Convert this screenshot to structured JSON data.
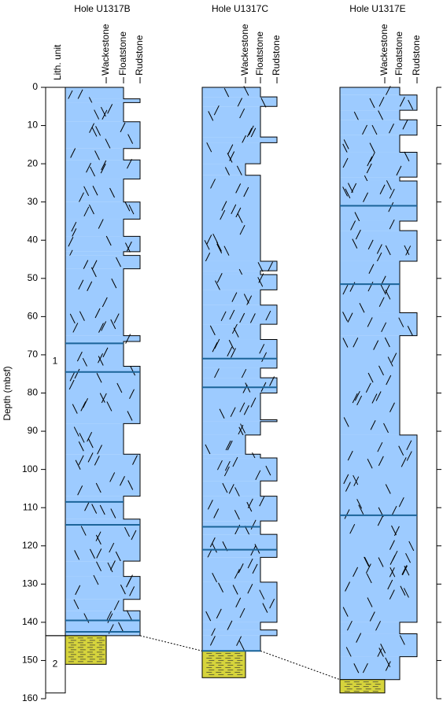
{
  "depth_axis": {
    "label": "Depth (mbsf)",
    "lim": [
      0,
      160
    ],
    "ticks": [
      0,
      10,
      20,
      30,
      40,
      50,
      60,
      70,
      80,
      90,
      100,
      110,
      120,
      130,
      140,
      150,
      160
    ]
  },
  "lith_units": {
    "label": "Lith. unit",
    "units": [
      {
        "label": "1",
        "top": 0,
        "bottom": 143.5
      },
      {
        "label": "2",
        "top": 143.5,
        "bottom": 158.5
      }
    ]
  },
  "holes": [
    {
      "title": "Hole U1317B",
      "columns": [
        "Wackestone",
        "Floatstone",
        "Rudstone"
      ],
      "intervals": [
        [
          0,
          3,
          "Floatstone"
        ],
        [
          3,
          4,
          "Rudstone"
        ],
        [
          4,
          9,
          "Floatstone"
        ],
        [
          9,
          16,
          "Rudstone"
        ],
        [
          16,
          19,
          "Floatstone"
        ],
        [
          19,
          24,
          "Rudstone"
        ],
        [
          24,
          30,
          "Floatstone"
        ],
        [
          30,
          34.5,
          "Rudstone"
        ],
        [
          34.5,
          39,
          "Floatstone"
        ],
        [
          39,
          43,
          "Rudstone"
        ],
        [
          43,
          44,
          "Floatstone"
        ],
        [
          44,
          47.5,
          "Rudstone"
        ],
        [
          47.5,
          65,
          "Floatstone"
        ],
        [
          65,
          66.5,
          "Rudstone"
        ],
        [
          66.5,
          73,
          "Floatstone"
        ],
        [
          73,
          88,
          "Rudstone"
        ],
        [
          88,
          96,
          "Floatstone"
        ],
        [
          96,
          107,
          "Rudstone"
        ],
        [
          107,
          113,
          "Floatstone"
        ],
        [
          113,
          124,
          "Rudstone"
        ],
        [
          124,
          128,
          "Floatstone"
        ],
        [
          128,
          134,
          "Rudstone"
        ],
        [
          134,
          137,
          "Floatstone"
        ],
        [
          137,
          143.5,
          "Rudstone"
        ]
      ],
      "base": [
        143.5,
        151,
        "Wackestone"
      ],
      "horizons": [
        67,
        74.5,
        108.5,
        114.5,
        139.5,
        142.5
      ]
    },
    {
      "title": "Hole U1317C",
      "columns": [
        "Wackestone",
        "Floatstone",
        "Rudstone"
      ],
      "intervals": [
        [
          0,
          2.5,
          "Floatstone"
        ],
        [
          2.5,
          5,
          "Rudstone"
        ],
        [
          5,
          13,
          "Floatstone"
        ],
        [
          13,
          14.5,
          "Rudstone"
        ],
        [
          14.5,
          20,
          "Floatstone"
        ],
        [
          20,
          23,
          "Wackestone"
        ],
        [
          23,
          45.5,
          "Floatstone"
        ],
        [
          45.5,
          48,
          "Rudstone"
        ],
        [
          48,
          49,
          "Floatstone"
        ],
        [
          49,
          53,
          "Rudstone"
        ],
        [
          53,
          57,
          "Floatstone"
        ],
        [
          57,
          62,
          "Rudstone"
        ],
        [
          62,
          66,
          "Floatstone"
        ],
        [
          66,
          73.5,
          "Rudstone"
        ],
        [
          73.5,
          76,
          "Floatstone"
        ],
        [
          76,
          80,
          "Rudstone"
        ],
        [
          80,
          87,
          "Floatstone"
        ],
        [
          87,
          87.5,
          "Rudstone"
        ],
        [
          87.5,
          91,
          "Floatstone"
        ],
        [
          91,
          96,
          "Wackestone"
        ],
        [
          96,
          97,
          "Floatstone"
        ],
        [
          97,
          103,
          "Rudstone"
        ],
        [
          103,
          107,
          "Floatstone"
        ],
        [
          107,
          113.5,
          "Rudstone"
        ],
        [
          113.5,
          117,
          "Floatstone"
        ],
        [
          117,
          123,
          "Rudstone"
        ],
        [
          123,
          129.5,
          "Floatstone"
        ],
        [
          129.5,
          140,
          "Rudstone"
        ],
        [
          140,
          142,
          "Floatstone"
        ],
        [
          142,
          143.5,
          "Rudstone"
        ],
        [
          143.5,
          147.5,
          "Floatstone"
        ]
      ],
      "base": [
        147.5,
        154.5,
        "Wackestone"
      ],
      "horizons": [
        71,
        78.5,
        115,
        121,
        147.5
      ]
    },
    {
      "title": "Hole U1317E",
      "columns": [
        "Wackestone",
        "Floatstone",
        "Rudstone"
      ],
      "intervals": [
        [
          0,
          2,
          "Floatstone"
        ],
        [
          2,
          6,
          "Rudstone"
        ],
        [
          6,
          8.5,
          "Floatstone"
        ],
        [
          8.5,
          12.5,
          "Rudstone"
        ],
        [
          12.5,
          17,
          "Floatstone"
        ],
        [
          17,
          23.5,
          "Rudstone"
        ],
        [
          23.5,
          24.5,
          "Floatstone"
        ],
        [
          24.5,
          35,
          "Rudstone"
        ],
        [
          35,
          37.5,
          "Floatstone"
        ],
        [
          37.5,
          45.5,
          "Rudstone"
        ],
        [
          45.5,
          59,
          "Floatstone"
        ],
        [
          59,
          65,
          "Rudstone"
        ],
        [
          65,
          91,
          "Floatstone"
        ],
        [
          91,
          140,
          "Rudstone"
        ],
        [
          140,
          143,
          "Floatstone"
        ],
        [
          143,
          149,
          "Rudstone"
        ],
        [
          149,
          155,
          "Floatstone"
        ]
      ],
      "base": [
        155,
        158.5,
        "Wackestone"
      ],
      "horizons": [
        31,
        51.5,
        112
      ]
    }
  ]
}
